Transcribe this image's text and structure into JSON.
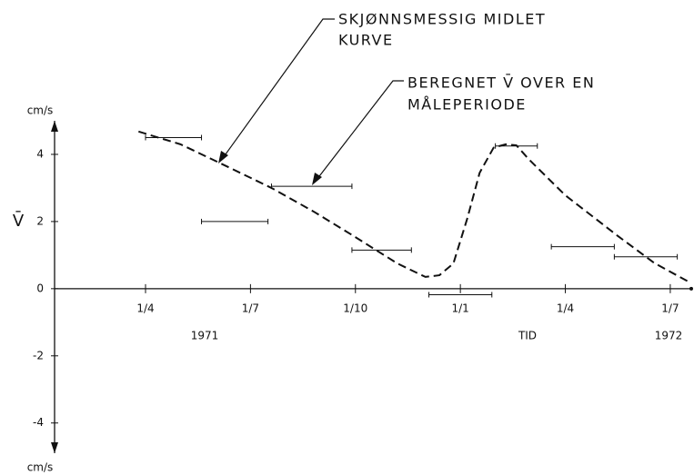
{
  "chart_data": {
    "type": "line",
    "annotations": [
      "SKJØNNSMESSIG MIDLET",
      "KURVE",
      "BEREGNET V̄ OVER EN",
      "MÅLEPERIODE"
    ],
    "y_label": "V̄",
    "y_unit_top": "cm/s",
    "y_unit_bottom": "cm/s",
    "x_sublabels": [
      "1971",
      "TID",
      "1972"
    ],
    "xlim": [
      0.4,
      18.6
    ],
    "xticks": [
      {
        "value": 3,
        "label": "1/4"
      },
      {
        "value": 6,
        "label": "1/7"
      },
      {
        "value": 9,
        "label": "1/10"
      },
      {
        "value": 12,
        "label": "1/1"
      },
      {
        "value": 15,
        "label": "1/4"
      },
      {
        "value": 18,
        "label": "1/7"
      }
    ],
    "ylim": [
      -4.9,
      5
    ],
    "yticks": [
      4,
      2,
      0,
      -2,
      -4
    ],
    "color": "#111111",
    "curve": {
      "x": [
        2.8,
        4.0,
        5.05,
        6.6,
        7.8,
        8.9,
        10.2,
        11.0,
        11.4,
        11.8,
        12.2,
        12.55,
        12.95,
        13.3,
        13.6,
        13.95,
        15.0,
        16.5,
        17.55,
        18.5
      ],
      "values": [
        4.68,
        4.3,
        3.78,
        3.0,
        2.3,
        1.6,
        0.75,
        0.35,
        0.4,
        0.75,
        2.1,
        3.45,
        4.2,
        4.3,
        4.27,
        3.86,
        2.78,
        1.57,
        0.76,
        0.22
      ]
    },
    "periods": {
      "x_start": [
        3.0,
        4.6,
        6.6,
        8.9,
        11.1,
        13.0,
        14.6,
        16.4
      ],
      "x_end": [
        4.6,
        6.5,
        8.9,
        10.6,
        12.9,
        14.2,
        16.4,
        18.2
      ],
      "values": [
        4.5,
        2.0,
        3.05,
        1.15,
        -0.18,
        4.25,
        1.25,
        0.95
      ]
    }
  }
}
